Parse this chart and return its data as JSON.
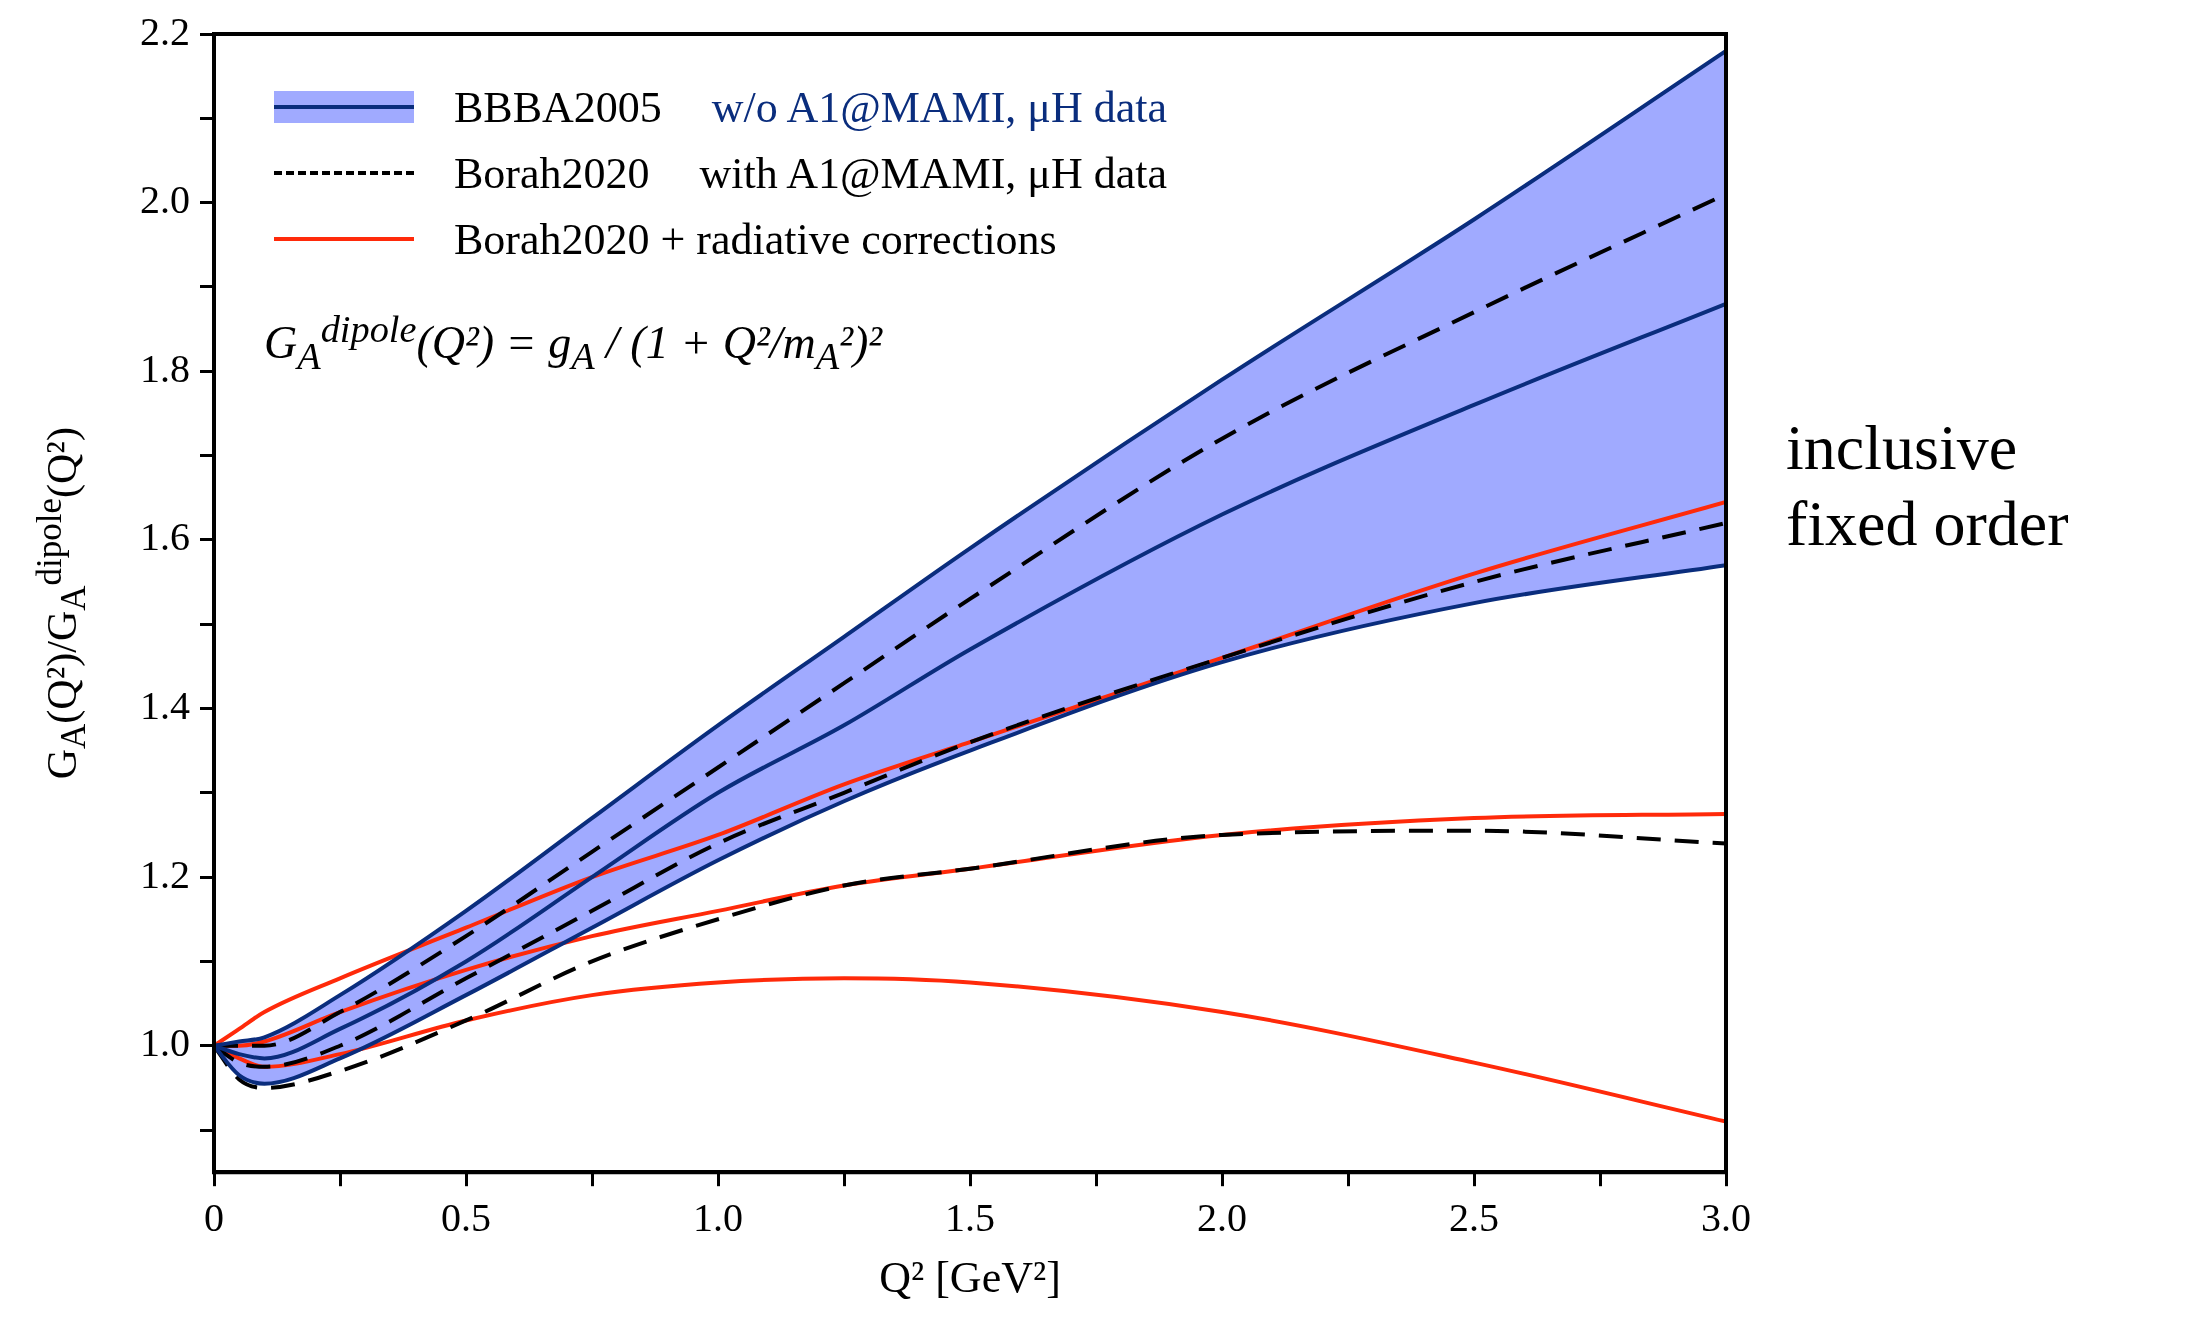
{
  "chart_data": {
    "type": "line",
    "xlabel": "Q² [GeV²]",
    "ylabel": "G$_{A}$(Q²)/G$_{A}$$^{dipole}$(Q²)",
    "xlim": [
      0,
      3
    ],
    "ylim": [
      0.85,
      2.2
    ],
    "xticks": [
      0,
      {
        "value": 0.25,
        "label": null
      },
      0.5,
      {
        "value": 0.75,
        "label": null
      },
      {
        "value": 1,
        "label": "1.0"
      },
      {
        "value": 1.25,
        "label": null
      },
      1.5,
      {
        "value": 1.75,
        "label": null
      },
      {
        "value": 2,
        "label": "2.0"
      },
      {
        "value": 2.25,
        "label": null
      },
      2.5,
      {
        "value": 2.75,
        "label": null
      },
      {
        "value": 3,
        "label": "3.0"
      }
    ],
    "yticks": [
      {
        "value": 0.9,
        "label": null
      },
      {
        "value": 1,
        "label": "1.0"
      },
      {
        "value": 1.1,
        "label": null
      },
      1.2,
      {
        "value": 1.3,
        "label": null
      },
      1.4,
      {
        "value": 1.5,
        "label": null
      },
      1.6,
      {
        "value": 1.7,
        "label": null
      },
      1.8,
      {
        "value": 1.9,
        "label": null
      },
      {
        "value": 2,
        "label": "2.0"
      },
      {
        "value": 2.1,
        "label": null
      },
      2.2
    ],
    "grid": false,
    "legend": "top left",
    "marker": "none",
    "x": [
      0,
      0.05,
      0.1,
      0.25,
      0.5,
      0.75,
      1,
      1.25,
      1.5,
      2,
      2.5,
      3
    ],
    "series": [
      {
        "name": "BBBA2005",
        "color": "#0a2d7d",
        "line_style": "solid",
        "values": [
          1,
          0.99,
          0.985,
          1.02,
          1.1,
          1.2,
          1.3,
          1.38,
          1.47,
          1.63,
          1.76,
          1.88
        ],
        "lower": [
          1,
          0.965,
          0.955,
          0.985,
          1.06,
          1.14,
          1.22,
          1.29,
          1.35,
          1.455,
          1.525,
          1.57
        ],
        "upper": [
          1,
          1.005,
          1.01,
          1.06,
          1.16,
          1.27,
          1.38,
          1.485,
          1.59,
          1.79,
          1.98,
          2.18
        ]
      },
      {
        "color": "#0a2d7d",
        "line_style": "solid",
        "values": [
          1,
          0.965,
          0.955,
          0.985,
          1.06,
          1.14,
          1.22,
          1.29,
          1.35,
          1.455,
          1.525,
          1.57
        ]
      },
      {
        "color": "#0a2d7d",
        "line_style": "solid",
        "values": [
          1,
          1.005,
          1.01,
          1.06,
          1.16,
          1.27,
          1.38,
          1.485,
          1.59,
          1.79,
          1.98,
          2.18
        ]
      },
      {
        "name": "Borah2020",
        "color": "#000000",
        "line_style": "dashed",
        "values": [
          1,
          1.0,
          1.0,
          1.04,
          1.13,
          1.23,
          1.33,
          1.43,
          1.53,
          1.72,
          1.87,
          2.01
        ]
      },
      {
        "color": "#000000",
        "line_style": "dashed",
        "values": [
          1,
          0.98,
          0.975,
          1.0,
          1.08,
          1.16,
          1.24,
          1.3,
          1.36,
          1.46,
          1.55,
          1.62
        ]
      },
      {
        "color": "#000000",
        "line_style": "dashed",
        "values": [
          1,
          0.96,
          0.95,
          0.97,
          1.03,
          1.1,
          1.15,
          1.19,
          1.21,
          1.25,
          1.255,
          1.24
        ]
      },
      {
        "name": "Borah2020 + radiative corrections",
        "color": "#ff2a0a",
        "line_style": "solid",
        "values": [
          1,
          1.02,
          1.04,
          1.08,
          1.14,
          1.2,
          1.25,
          1.31,
          1.36,
          1.46,
          1.56,
          1.645
        ]
      },
      {
        "color": "#ff2a0a",
        "line_style": "solid",
        "values": [
          1,
          1.0,
          1.005,
          1.04,
          1.09,
          1.13,
          1.16,
          1.19,
          1.21,
          1.25,
          1.27,
          1.275
        ]
      },
      {
        "color": "#ff2a0a",
        "line_style": "solid",
        "values": [
          1,
          0.985,
          0.975,
          0.99,
          1.03,
          1.06,
          1.075,
          1.08,
          1.075,
          1.04,
          0.98,
          0.91
        ]
      }
    ],
    "annotations": [
      "w/o A1@MAMI, μH data",
      "with A1@MAMI, μH data",
      "G$_{A}$$^{dipole}$(Q²) = g$_{A}$ / (1 + Q²/m$_{A}$²)²",
      "inclusive fixed order"
    ]
  }
}
